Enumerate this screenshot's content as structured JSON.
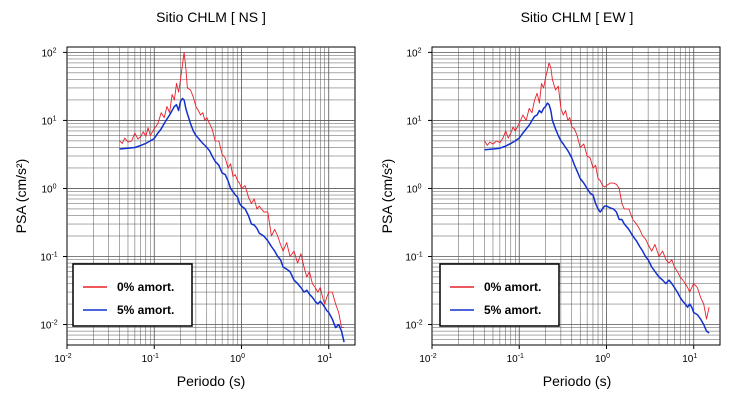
{
  "chart_data": [
    {
      "type": "line",
      "title": "Sitio CHLM [ NS ]",
      "xlabel": "Periodo (s)",
      "ylabel": "PSA (cm/s²)",
      "x_scale": "log",
      "y_scale": "log",
      "xlim": [
        0.01,
        20
      ],
      "ylim": [
        0.005,
        120
      ],
      "grid": true,
      "legend_position": "bottom-left",
      "x_ticks": [
        {
          "base": "10",
          "exp": "-2"
        },
        {
          "base": "10",
          "exp": "-1"
        },
        {
          "base": "10",
          "exp": "0"
        },
        {
          "base": "10",
          "exp": "1"
        }
      ],
      "y_ticks": [
        {
          "base": "10",
          "exp": "-2"
        },
        {
          "base": "10",
          "exp": "-1"
        },
        {
          "base": "10",
          "exp": "0"
        },
        {
          "base": "10",
          "exp": "1"
        },
        {
          "base": "10",
          "exp": "2"
        }
      ],
      "series": [
        {
          "name": "0% amort.",
          "color": "#e8202a",
          "x": [
            0.04,
            0.043,
            0.046,
            0.05,
            0.055,
            0.06,
            0.065,
            0.07,
            0.075,
            0.08,
            0.085,
            0.09,
            0.1,
            0.11,
            0.12,
            0.13,
            0.14,
            0.15,
            0.16,
            0.17,
            0.18,
            0.19,
            0.2,
            0.21,
            0.22,
            0.23,
            0.24,
            0.26,
            0.28,
            0.3,
            0.32,
            0.34,
            0.36,
            0.38,
            0.4,
            0.43,
            0.46,
            0.5,
            0.55,
            0.6,
            0.65,
            0.7,
            0.75,
            0.8,
            0.85,
            0.9,
            0.95,
            1.0,
            1.1,
            1.2,
            1.3,
            1.4,
            1.5,
            1.6,
            1.8,
            2.0,
            2.2,
            2.4,
            2.6,
            2.8,
            3.0,
            3.3,
            3.6,
            4.0,
            4.4,
            4.8,
            5.2,
            5.6,
            6.0,
            6.5,
            7.0,
            7.5,
            8.0,
            8.5,
            9.0,
            9.5,
            10.0,
            11.0,
            12.0,
            13.0,
            14.0,
            15.0
          ],
          "y": [
            5.0,
            4.6,
            5.5,
            4.8,
            5.0,
            6.5,
            5.3,
            5.8,
            6.8,
            5.8,
            7.8,
            6.0,
            7.5,
            9.0,
            13.0,
            11.0,
            16.0,
            13.0,
            24.0,
            20.0,
            35.0,
            26.0,
            40.0,
            65.0,
            100.0,
            60.0,
            30.0,
            28.0,
            22.0,
            16.0,
            14.0,
            12.0,
            13.0,
            10.0,
            11.0,
            9.0,
            7.5,
            5.0,
            5.0,
            3.2,
            2.8,
            2.0,
            2.3,
            1.5,
            1.6,
            1.3,
            1.2,
            1.0,
            1.1,
            0.75,
            0.6,
            0.7,
            0.5,
            0.55,
            0.45,
            0.45,
            0.2,
            0.25,
            0.2,
            0.15,
            0.12,
            0.16,
            0.1,
            0.12,
            0.08,
            0.11,
            0.07,
            0.05,
            0.06,
            0.04,
            0.035,
            0.03,
            0.035,
            0.025,
            0.02,
            0.025,
            0.03,
            0.03,
            0.02,
            0.015,
            0.009,
            0.009
          ]
        },
        {
          "name": "5% amort.",
          "color": "#1030d0",
          "x": [
            0.04,
            0.05,
            0.06,
            0.07,
            0.08,
            0.09,
            0.1,
            0.11,
            0.12,
            0.13,
            0.14,
            0.15,
            0.16,
            0.17,
            0.18,
            0.19,
            0.2,
            0.21,
            0.22,
            0.23,
            0.24,
            0.26,
            0.28,
            0.3,
            0.32,
            0.34,
            0.36,
            0.38,
            0.4,
            0.43,
            0.46,
            0.5,
            0.55,
            0.6,
            0.65,
            0.7,
            0.75,
            0.8,
            0.85,
            0.9,
            0.95,
            1.0,
            1.1,
            1.2,
            1.3,
            1.4,
            1.5,
            1.6,
            1.8,
            2.0,
            2.2,
            2.4,
            2.6,
            2.8,
            3.0,
            3.3,
            3.6,
            4.0,
            4.4,
            4.8,
            5.2,
            5.6,
            6.0,
            6.5,
            7.0,
            7.5,
            8.0,
            8.5,
            9.0,
            9.5,
            10.0,
            11.0,
            12.0,
            13.0,
            14.0,
            15.0
          ],
          "y": [
            3.8,
            3.9,
            4.0,
            4.3,
            4.6,
            5.0,
            5.4,
            6.5,
            7.5,
            9.0,
            10.5,
            12.0,
            14.0,
            16.0,
            17.0,
            14.0,
            19.0,
            21.0,
            20.0,
            15.0,
            12.5,
            9.0,
            7.0,
            6.0,
            5.5,
            5.0,
            4.6,
            4.3,
            4.0,
            3.6,
            3.0,
            2.5,
            2.2,
            1.7,
            1.6,
            1.3,
            1.0,
            0.9,
            0.8,
            0.75,
            0.6,
            0.55,
            0.5,
            0.4,
            0.3,
            0.29,
            0.26,
            0.22,
            0.2,
            0.17,
            0.14,
            0.12,
            0.1,
            0.09,
            0.07,
            0.065,
            0.06,
            0.045,
            0.04,
            0.035,
            0.03,
            0.032,
            0.028,
            0.025,
            0.022,
            0.02,
            0.022,
            0.02,
            0.018,
            0.016,
            0.015,
            0.012,
            0.009,
            0.01,
            0.008,
            0.0055
          ]
        }
      ]
    },
    {
      "type": "line",
      "title": "Sitio CHLM [ EW ]",
      "xlabel": "Periodo (s)",
      "ylabel": "PSA (cm/s²)",
      "x_scale": "log",
      "y_scale": "log",
      "xlim": [
        0.01,
        20
      ],
      "ylim": [
        0.005,
        120
      ],
      "grid": true,
      "legend_position": "bottom-left",
      "x_ticks": [
        {
          "base": "10",
          "exp": "-2"
        },
        {
          "base": "10",
          "exp": "-1"
        },
        {
          "base": "10",
          "exp": "0"
        },
        {
          "base": "10",
          "exp": "1"
        }
      ],
      "y_ticks": [
        {
          "base": "10",
          "exp": "-2"
        },
        {
          "base": "10",
          "exp": "-1"
        },
        {
          "base": "10",
          "exp": "0"
        },
        {
          "base": "10",
          "exp": "1"
        },
        {
          "base": "10",
          "exp": "2"
        }
      ],
      "series": [
        {
          "name": "0% amort.",
          "color": "#e8202a",
          "x": [
            0.04,
            0.043,
            0.046,
            0.05,
            0.055,
            0.06,
            0.065,
            0.07,
            0.075,
            0.08,
            0.085,
            0.09,
            0.1,
            0.11,
            0.12,
            0.13,
            0.14,
            0.15,
            0.16,
            0.17,
            0.18,
            0.19,
            0.2,
            0.21,
            0.22,
            0.23,
            0.24,
            0.26,
            0.28,
            0.3,
            0.32,
            0.34,
            0.36,
            0.38,
            0.4,
            0.43,
            0.46,
            0.5,
            0.55,
            0.6,
            0.65,
            0.7,
            0.75,
            0.8,
            0.85,
            0.9,
            0.95,
            1.0,
            1.1,
            1.2,
            1.3,
            1.4,
            1.5,
            1.6,
            1.8,
            2.0,
            2.2,
            2.4,
            2.6,
            2.8,
            3.0,
            3.3,
            3.6,
            4.0,
            4.4,
            4.8,
            5.2,
            5.6,
            6.0,
            6.5,
            7.0,
            7.5,
            8.0,
            8.5,
            9.0,
            9.5,
            10.0,
            11.0,
            12.0,
            13.0,
            14.0,
            15.0
          ],
          "y": [
            5.0,
            4.3,
            4.8,
            4.5,
            5.0,
            4.7,
            5.5,
            7.0,
            5.5,
            6.5,
            8.0,
            7.0,
            9.0,
            12.0,
            10.0,
            15.0,
            13.0,
            20.0,
            25.0,
            18.0,
            35.0,
            30.0,
            42.0,
            55.0,
            70.0,
            60.0,
            40.0,
            28.0,
            32.0,
            15.0,
            12.0,
            14.0,
            10.0,
            11.0,
            8.0,
            7.5,
            6.0,
            4.0,
            4.5,
            3.0,
            2.8,
            2.0,
            2.2,
            1.4,
            1.3,
            1.1,
            1.05,
            1.1,
            1.2,
            1.2,
            1.15,
            1.0,
            0.6,
            0.5,
            0.5,
            0.35,
            0.3,
            0.25,
            0.2,
            0.18,
            0.15,
            0.12,
            0.15,
            0.1,
            0.12,
            0.09,
            0.08,
            0.09,
            0.07,
            0.06,
            0.05,
            0.045,
            0.04,
            0.035,
            0.03,
            0.035,
            0.04,
            0.035,
            0.025,
            0.02,
            0.012,
            0.018
          ]
        },
        {
          "name": "5% amort.",
          "color": "#1030d0",
          "x": [
            0.04,
            0.05,
            0.06,
            0.07,
            0.08,
            0.09,
            0.1,
            0.11,
            0.12,
            0.13,
            0.14,
            0.15,
            0.16,
            0.17,
            0.18,
            0.19,
            0.2,
            0.21,
            0.22,
            0.23,
            0.24,
            0.26,
            0.28,
            0.3,
            0.32,
            0.34,
            0.36,
            0.38,
            0.4,
            0.43,
            0.46,
            0.5,
            0.55,
            0.6,
            0.65,
            0.7,
            0.75,
            0.8,
            0.85,
            0.9,
            0.95,
            1.0,
            1.1,
            1.2,
            1.3,
            1.4,
            1.5,
            1.6,
            1.8,
            2.0,
            2.2,
            2.4,
            2.6,
            2.8,
            3.0,
            3.3,
            3.6,
            4.0,
            4.4,
            4.8,
            5.2,
            5.6,
            6.0,
            6.5,
            7.0,
            7.5,
            8.0,
            8.5,
            9.0,
            9.5,
            10.0,
            11.0,
            12.0,
            13.0,
            14.0,
            15.0
          ],
          "y": [
            3.7,
            3.8,
            3.9,
            4.2,
            4.6,
            5.0,
            5.5,
            6.5,
            7.5,
            8.5,
            10.0,
            11.5,
            12.0,
            14.0,
            13.0,
            15.0,
            16.0,
            18.0,
            17.0,
            14.0,
            10.0,
            7.5,
            6.0,
            5.0,
            4.5,
            4.0,
            3.6,
            3.2,
            2.8,
            2.2,
            1.8,
            1.4,
            1.2,
            1.0,
            0.85,
            0.8,
            0.6,
            0.5,
            0.45,
            0.5,
            0.55,
            0.55,
            0.52,
            0.5,
            0.45,
            0.35,
            0.35,
            0.3,
            0.25,
            0.2,
            0.17,
            0.14,
            0.12,
            0.1,
            0.09,
            0.07,
            0.06,
            0.05,
            0.045,
            0.04,
            0.045,
            0.04,
            0.035,
            0.03,
            0.025,
            0.022,
            0.02,
            0.018,
            0.02,
            0.018,
            0.015,
            0.014,
            0.012,
            0.01,
            0.008,
            0.0075
          ]
        }
      ]
    }
  ]
}
